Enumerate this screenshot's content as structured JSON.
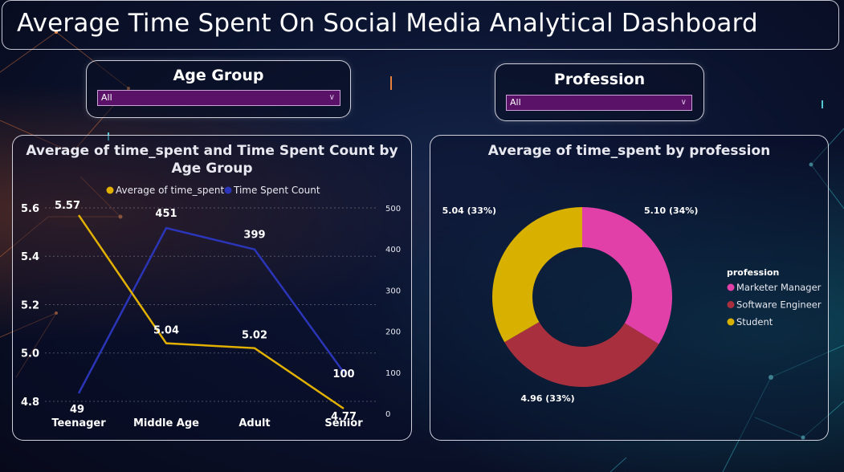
{
  "header": {
    "title": "Average Time Spent On Social Media Analytical Dashboard"
  },
  "slicers": [
    {
      "title": "Age Group",
      "selected": "All"
    },
    {
      "title": "Profession",
      "selected": "All"
    }
  ],
  "colors": {
    "avg_line": "#e2b100",
    "count_line": "#2b35b8",
    "marketer": "#e040a8",
    "engineer": "#a8303e",
    "student": "#d8b000"
  },
  "chart_data": [
    {
      "type": "line",
      "title": "Average of time_spent and Time Spent Count by Age Group",
      "categories": [
        "Teenager",
        "Middle Age",
        "Adult",
        "Senior"
      ],
      "series": [
        {
          "name": "Average of time_spent",
          "axis": "left",
          "values": [
            5.57,
            5.04,
            5.02,
            4.77
          ],
          "labels": [
            "5.57",
            "5.04",
            "5.02",
            "4.77"
          ]
        },
        {
          "name": "Time Spent Count",
          "axis": "right",
          "values": [
            49,
            451,
            399,
            100
          ],
          "labels": [
            "49",
            "451",
            "399",
            "100"
          ]
        }
      ],
      "y_left": {
        "ticks": [
          "5.6",
          "5.4",
          "5.2",
          "5.0",
          "4.8"
        ],
        "range": [
          4.75,
          5.6
        ]
      },
      "y_right": {
        "ticks": [
          "500",
          "400",
          "300",
          "200",
          "100",
          "0"
        ],
        "range": [
          0,
          500
        ]
      },
      "legend": "top",
      "grid": true
    },
    {
      "type": "pie",
      "title": "Average of time_spent by profession",
      "legend_title": "profession",
      "slices": [
        {
          "name": "Marketer Manager",
          "value": 5.1,
          "label": "5.10 (34%)"
        },
        {
          "name": "Software Engineer",
          "value": 4.96,
          "label": "4.96 (33%)"
        },
        {
          "name": "Student",
          "value": 5.04,
          "label": "5.04 (33%)"
        }
      ],
      "donut": true,
      "legend": "right"
    }
  ]
}
